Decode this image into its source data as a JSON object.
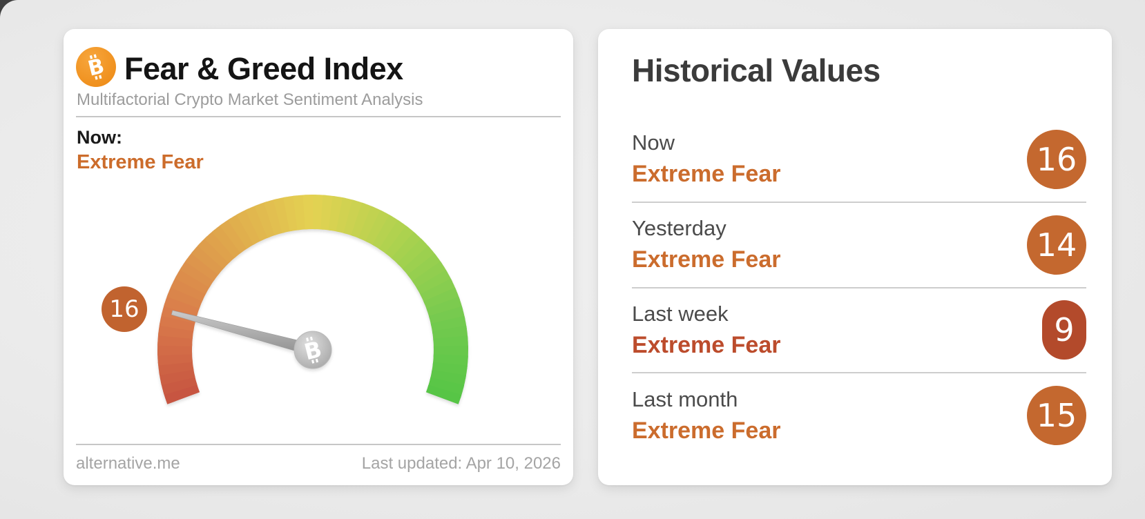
{
  "page": {
    "background": "#ebebeb",
    "corner_color": "#3f3f3f"
  },
  "colors": {
    "bitcoin_orange_light": "#f7a63c",
    "bitcoin_orange_dark": "#ee8c18",
    "extreme_fear_text": "#cc6c2b",
    "gauge_badge": "#c1632f"
  },
  "gauge_card": {
    "title": "Fear & Greed Index",
    "subtitle": "Multifactorial Crypto Market Sentiment Analysis",
    "now_label": "Now:",
    "sentiment": "Extreme Fear",
    "value": 16,
    "footer_left": "alternative.me",
    "footer_right": "Last updated: Apr 10, 2026"
  },
  "historical_card": {
    "title": "Historical Values",
    "rows": [
      {
        "label": "Now",
        "classification": "Extreme Fear",
        "value": 16,
        "badge_color": "#c4682f",
        "classification_color": "#cb6c2d"
      },
      {
        "label": "Yesterday",
        "classification": "Extreme Fear",
        "value": 14,
        "badge_color": "#c4682f",
        "classification_color": "#cb6c2d"
      },
      {
        "label": "Last week",
        "classification": "Extreme Fear",
        "value": 9,
        "badge_color": "#b34a2b",
        "classification_color": "#bc4c2c"
      },
      {
        "label": "Last month",
        "classification": "Extreme Fear",
        "value": 15,
        "badge_color": "#c4682f",
        "classification_color": "#cb6c2d"
      }
    ]
  },
  "chart_data": {
    "type": "gauge",
    "title": "Fear & Greed Index",
    "value": 16,
    "min": 0,
    "max": 100,
    "classification": "Extreme Fear",
    "start_angle_deg": 200.5,
    "end_angle_deg": -20.5,
    "outer_radius": 225,
    "band_width": 50,
    "color_stops": [
      {
        "pos": 0,
        "color": "#c65340"
      },
      {
        "pos": 0.15,
        "color": "#d97a4b"
      },
      {
        "pos": 0.32,
        "color": "#dfa54c"
      },
      {
        "pos": 0.5,
        "color": "#e4d252"
      },
      {
        "pos": 0.68,
        "color": "#aad24f"
      },
      {
        "pos": 0.85,
        "color": "#74ca4f"
      },
      {
        "pos": 1,
        "color": "#55c545"
      }
    ]
  }
}
